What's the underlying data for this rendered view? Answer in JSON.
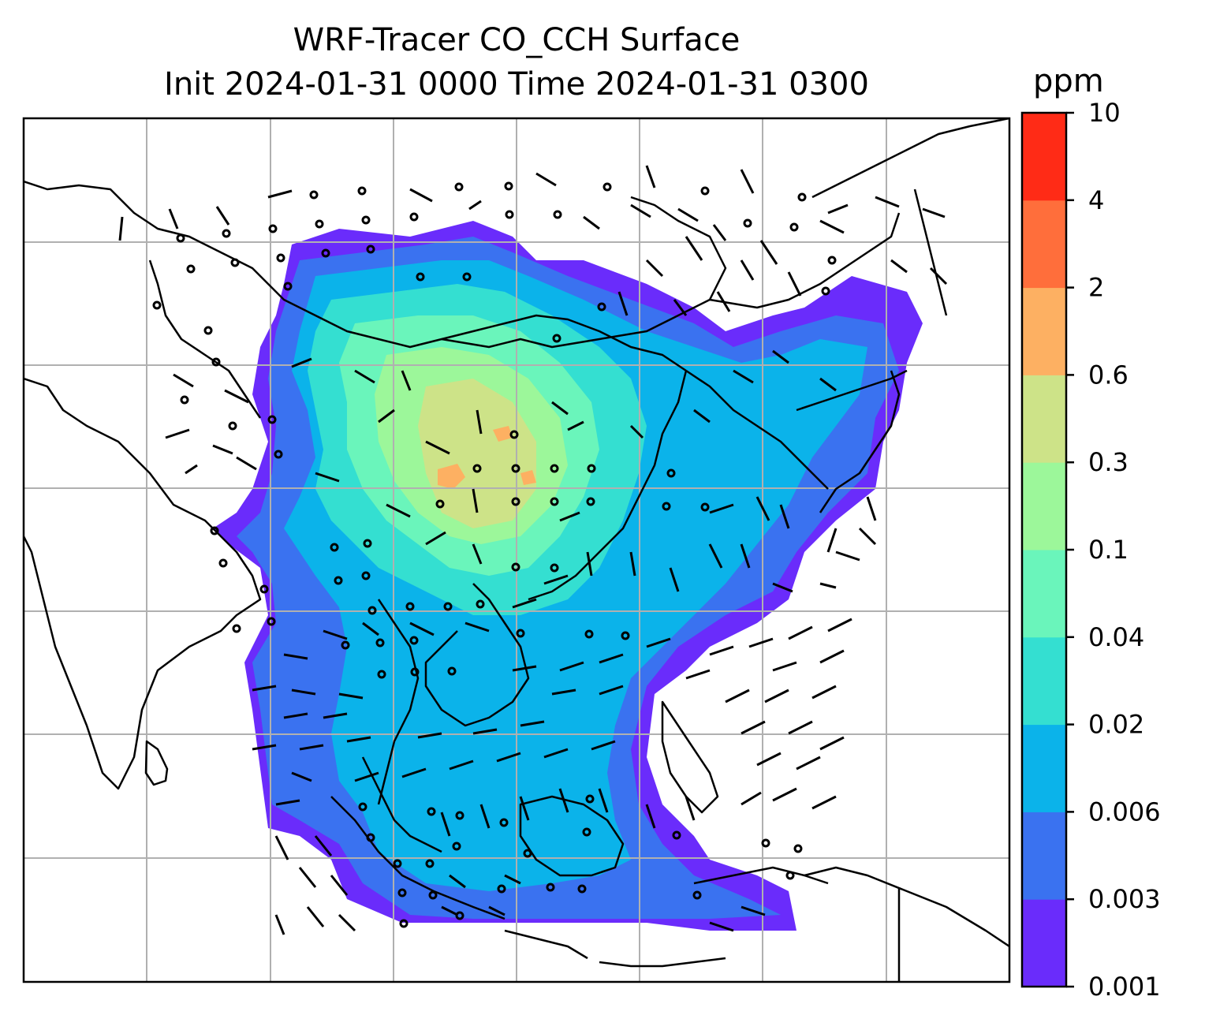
{
  "title": {
    "line1": "WRF-Tracer CO_CCH Surface",
    "line2": "Init 2024-01-31 0000 Time 2024-01-31 0300"
  },
  "colorbar": {
    "unit": "ppm",
    "levels": [
      "0.001",
      "0.003",
      "0.006",
      "0.02",
      "0.04",
      "0.1",
      "0.3",
      "0.6",
      "2",
      "4",
      "10"
    ],
    "colors": [
      "#6a2cfb",
      "#3a72f0",
      "#0bb3ea",
      "#34dfd1",
      "#6af5bb",
      "#9cf79a",
      "#cde388",
      "#fdb062",
      "#ff6e3b",
      "#ff2b16"
    ]
  },
  "map": {
    "grid": true,
    "colors": {
      "outside": "#ffffff",
      "level1": "#6a2cfb",
      "level2": "#3a72f0",
      "level3": "#0bb3ea",
      "level4": "#34dfd1",
      "level5": "#6af5bb",
      "level6": "#9cf79a",
      "level7": "#cde388",
      "level8": "#fdb062"
    }
  }
}
